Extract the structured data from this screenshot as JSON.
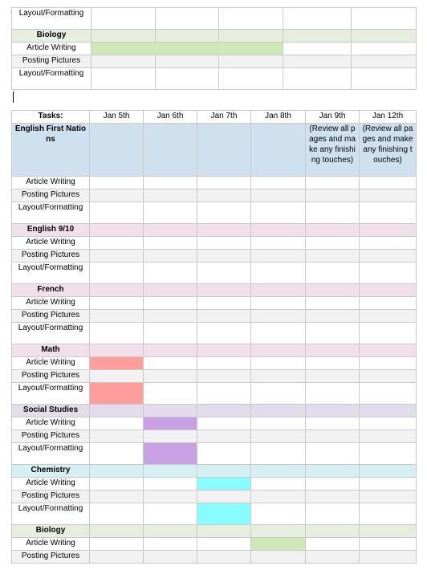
{
  "top_table": {
    "rows": [
      {
        "label": "Layout/Formatting",
        "kind": "task"
      },
      {
        "label": "Biology",
        "kind": "header"
      },
      {
        "label": "Article Writing",
        "kind": "task"
      },
      {
        "label": "Posting Pictures",
        "kind": "task"
      },
      {
        "label": "Layout/Formatting",
        "kind": "task"
      }
    ]
  },
  "schedule": {
    "header": [
      "Tasks:",
      "Jan 5th",
      "Jan 6th",
      "Jan 7th",
      "Jan 8th",
      "Jan 9th",
      "Jan 12th"
    ],
    "review_note": "(Review all pages and make any finishing touches)",
    "subjects": [
      {
        "name": "English First Nations",
        "color": "#cfe0ef"
      },
      {
        "name": "English 9/10",
        "color": "#f1dfe9"
      },
      {
        "name": "French",
        "color": "#f1dfe9"
      },
      {
        "name": "Math",
        "color": "#f1dfe9"
      },
      {
        "name": "Social Studies",
        "color": "#e3dced"
      },
      {
        "name": "Chemistry",
        "color": "#d5eff2"
      },
      {
        "name": "Biology",
        "color": "#e6efdf"
      }
    ],
    "tasks": {
      "article": "Article Writing",
      "posting": "Posting Pictures",
      "layout": "Layout/Formatting"
    }
  },
  "colors": {
    "math": "#ff9c9c",
    "social": "#c7a1e3",
    "chemistry": "#87fdfd",
    "biology": "#cfe8b7",
    "biology_header": "#e6efdf"
  }
}
